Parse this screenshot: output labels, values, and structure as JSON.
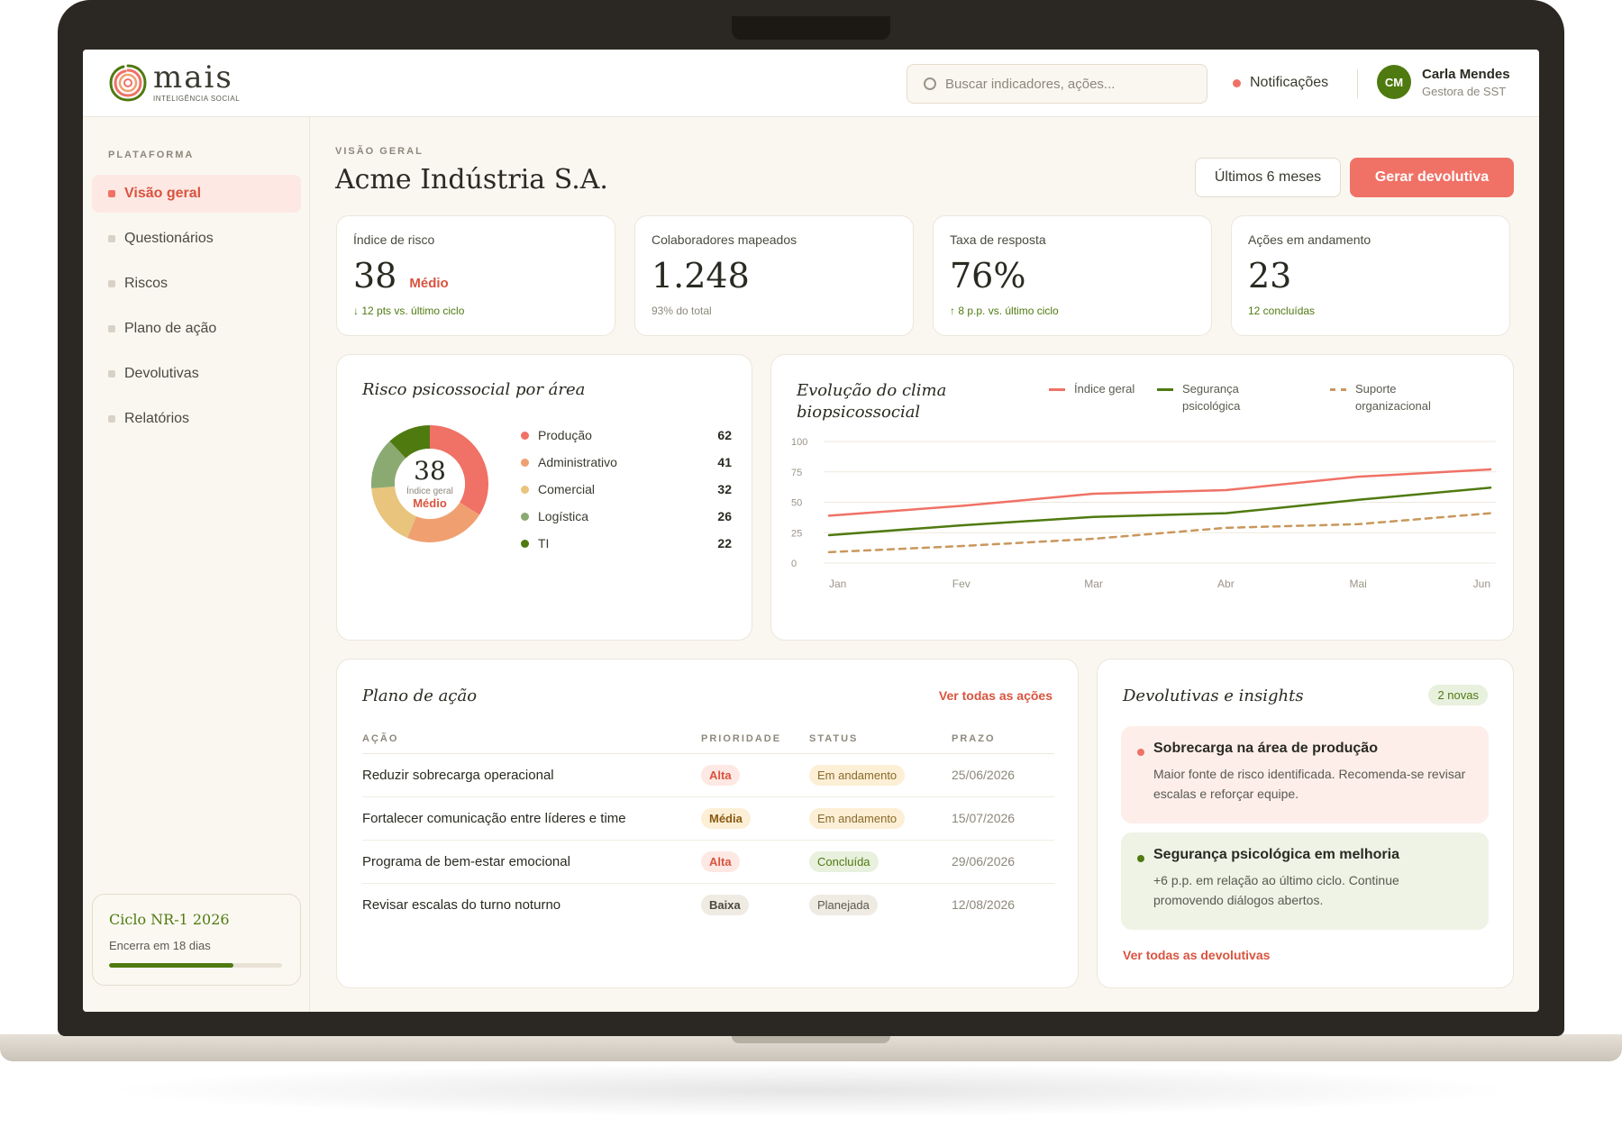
{
  "brand": {
    "name": "mais",
    "tagline": "INTELIGÊNCIA SOCIAL"
  },
  "search": {
    "placeholder": "Buscar indicadores, ações..."
  },
  "notifications": {
    "label": "Notificações"
  },
  "user": {
    "initials": "CM",
    "name": "Carla Mendes",
    "role": "Gestora de SST"
  },
  "sidebar": {
    "heading": "PLATAFORMA",
    "items": [
      {
        "label": "Visão geral",
        "active": true
      },
      {
        "label": "Questionários",
        "active": false
      },
      {
        "label": "Riscos",
        "active": false
      },
      {
        "label": "Plano de ação",
        "active": false
      },
      {
        "label": "Devolutivas",
        "active": false
      },
      {
        "label": "Relatórios",
        "active": false
      }
    ],
    "cycle": {
      "title": "Ciclo NR-1 2026",
      "subtitle": "Encerra em 18 dias",
      "progress": 0.72
    }
  },
  "header": {
    "eyebrow": "VISÃO GERAL",
    "title": "Acme Indústria S.A.",
    "period_button": "Últimos 6 meses",
    "primary_button": "Gerar devolutiva"
  },
  "kpis": [
    {
      "label": "Índice de risco",
      "value": "38",
      "tag": "Médio",
      "note": "↓ 12 pts vs. último ciclo",
      "note_style": "green"
    },
    {
      "label": "Colaboradores mapeados",
      "value": "1.248",
      "tag": "",
      "note": "93% do total",
      "note_style": "gray"
    },
    {
      "label": "Taxa de resposta",
      "value": "76%",
      "tag": "",
      "note": "↑ 8 p.p. vs. último ciclo",
      "note_style": "green"
    },
    {
      "label": "Ações em andamento",
      "value": "23",
      "tag": "",
      "note": "12 concluídas",
      "note_style": "green"
    }
  ],
  "risk_by_area": {
    "title": "Risco psicossocial por área",
    "center_value": "38",
    "center_label": "Índice geral",
    "center_level": "Médio",
    "areas": [
      {
        "label": "Produção",
        "value": 62,
        "color": "#f07166"
      },
      {
        "label": "Administrativo",
        "value": 41,
        "color": "#f0a070"
      },
      {
        "label": "Comercial",
        "value": 32,
        "color": "#e8c47c"
      },
      {
        "label": "Logística",
        "value": 26,
        "color": "#8aaa72"
      },
      {
        "label": "TI",
        "value": 22,
        "color": "#4f7a10"
      }
    ]
  },
  "chart_data": {
    "type": "line",
    "title": "Evolução do clima biopsicossocial",
    "x": [
      "Jan",
      "Fev",
      "Mar",
      "Abr",
      "Mai",
      "Jun"
    ],
    "ylim": [
      0,
      100
    ],
    "yticks": [
      0,
      25,
      50,
      75,
      100
    ],
    "grid": true,
    "legend": "top-right",
    "series": [
      {
        "name": "Índice geral",
        "color": "#f07166",
        "dashed": false,
        "values": [
          39,
          47,
          57,
          60,
          71,
          77
        ]
      },
      {
        "name": "Segurança psicológica",
        "color": "#4f7a10",
        "dashed": false,
        "values": [
          23,
          31,
          38,
          41,
          52,
          62
        ]
      },
      {
        "name": "Suporte organizacional",
        "color": "#c9975c",
        "dashed": true,
        "values": [
          9,
          14,
          20,
          29,
          32,
          41
        ]
      }
    ]
  },
  "action_plan": {
    "title": "Plano de ação",
    "link": "Ver todas as ações",
    "columns": [
      "AÇÃO",
      "PRIORIDADE",
      "STATUS",
      "PRAZO"
    ],
    "rows": [
      {
        "acao": "Reduzir sobrecarga operacional",
        "prioridade": "Alta",
        "status": "Em andamento",
        "prazo": "25/06/2026"
      },
      {
        "acao": "Fortalecer comunicação entre líderes e time",
        "prioridade": "Média",
        "status": "Em andamento",
        "prazo": "15/07/2026"
      },
      {
        "acao": "Programa de bem-estar emocional",
        "prioridade": "Alta",
        "status": "Concluída",
        "prazo": "29/06/2026"
      },
      {
        "acao": "Revisar escalas do turno noturno",
        "prioridade": "Baixa",
        "status": "Planejada",
        "prazo": "12/08/2026"
      }
    ]
  },
  "insights": {
    "title": "Devolutivas e insights",
    "badge": "2 novas",
    "items": [
      {
        "title": "Sobrecarga na área de produção",
        "body": "Maior fonte de risco identificada. Recomenda-se revisar escalas e reforçar equipe.",
        "tone": "red"
      },
      {
        "title": "Segurança psicológica em melhoria",
        "body": "+6 p.p. em relação ao último ciclo. Continue promovendo diálogos abertos.",
        "tone": "green"
      }
    ],
    "link": "Ver todas as devolutivas"
  }
}
